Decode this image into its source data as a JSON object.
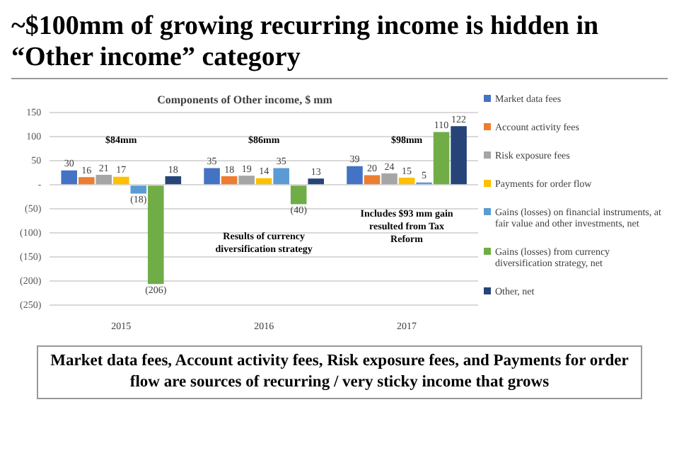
{
  "chart_data": {
    "type": "bar",
    "title": "~$100mm of growing recurring income is hidden in “Other income” category",
    "subtitle": "Components of Other income, $ mm",
    "categories": [
      "2015",
      "2016",
      "2017"
    ],
    "series": [
      {
        "name": "Market data fees",
        "color": "#4472c4",
        "values": [
          30,
          35,
          39
        ],
        "value_labels": [
          "30",
          "35",
          "39"
        ]
      },
      {
        "name": "Account activity fees",
        "color": "#ed7d31",
        "values": [
          16,
          18,
          20
        ],
        "value_labels": [
          "16",
          "18",
          "20"
        ]
      },
      {
        "name": "Risk exposure fees",
        "color": "#a5a5a5",
        "values": [
          21,
          19,
          24
        ],
        "value_labels": [
          "21",
          "19",
          "24"
        ]
      },
      {
        "name": "Payments for order flow",
        "color": "#ffc000",
        "values": [
          17,
          14,
          15
        ],
        "value_labels": [
          "17",
          "14",
          "15"
        ]
      },
      {
        "name": "Gains (losses) on financial instruments, at fair value and other investments, net",
        "color": "#5b9bd5",
        "values": [
          -18,
          35,
          5
        ],
        "value_labels": [
          "(18)",
          "35",
          "5"
        ]
      },
      {
        "name": "Gains (losses) from currency diversification strategy, net",
        "color": "#70ad47",
        "values": [
          -206,
          -40,
          110
        ],
        "value_labels": [
          "(206)",
          "(40)",
          "110"
        ]
      },
      {
        "name": "Other, net",
        "color": "#264478",
        "values": [
          18,
          13,
          122
        ],
        "value_labels": [
          "18",
          "13",
          "122"
        ]
      }
    ],
    "ylim": [
      -250,
      150
    ],
    "yticks": [
      150,
      100,
      50,
      {
        "value": 0,
        "label": "-"
      },
      {
        "value": -50,
        "label": "(50)"
      },
      {
        "value": -100,
        "label": "(100)"
      },
      {
        "value": -150,
        "label": "(150)"
      },
      {
        "value": -200,
        "label": "(200)"
      },
      {
        "value": -250,
        "label": "(250)"
      }
    ],
    "grid": "y",
    "legend": "right",
    "annotations": [
      "$84mm",
      "$86mm",
      "$98mm",
      "Results of currency diversification strategy",
      "Includes $93 mm gain resulted from Tax Reform",
      "Market data fees, Account activity fees, Risk exposure fees, and Payments for order flow are sources of recurring / very sticky income that grows"
    ]
  }
}
